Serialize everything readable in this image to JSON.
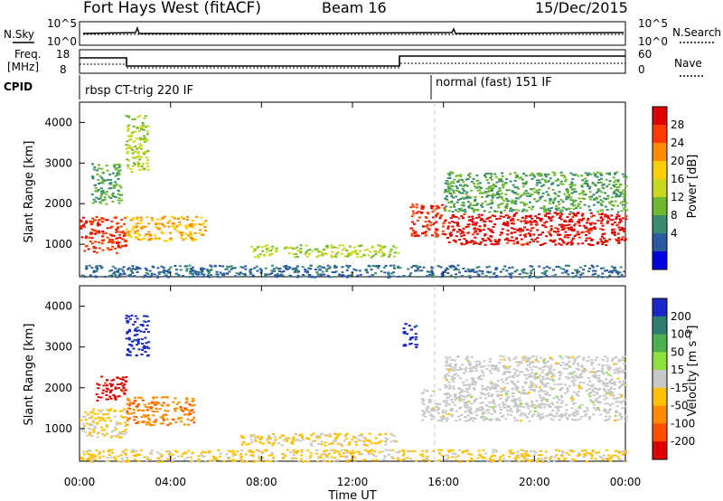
{
  "header": {
    "station": "Fort Hays West (fitACF)",
    "beam": "Beam 16",
    "date": "15/Dec/2015"
  },
  "noise_panel": {
    "left_label": "N.Sky",
    "right_label": "N.Search",
    "y_ticks_left": [
      "10^5",
      "10^0"
    ],
    "y_ticks_right": [
      "10^5",
      "10^0"
    ]
  },
  "freq_panel": {
    "left_label_line1": "Freq.",
    "left_label_line2": "[MHz]",
    "right_label": "Nave",
    "y_ticks_left": [
      "18",
      "8"
    ],
    "y_ticks_right": [
      "60",
      "0"
    ]
  },
  "cpid_panel": {
    "label": "CPID",
    "modes": [
      {
        "name": "rbsp CT-trig 220 IF",
        "start_hour": 0,
        "end_hour": 15.5
      },
      {
        "name": "normal (fast) 151 IF",
        "start_hour": 15.5,
        "end_hour": 24
      }
    ]
  },
  "power_colorbar": {
    "label": "Power [dB]",
    "ticks": [
      "28",
      "24",
      "20",
      "16",
      "12",
      "8",
      "4"
    ],
    "colors": [
      "#e00000",
      "#ff3c00",
      "#ff8c00",
      "#ffd000",
      "#c8d820",
      "#70b830",
      "#3a8c6e",
      "#2a5aa0",
      "#0000e0"
    ]
  },
  "velocity_colorbar": {
    "label": "Velocity [m s⁻¹]",
    "ticks": [
      "200",
      "100",
      "50",
      "15",
      "-15",
      "-50",
      "-100",
      "-200"
    ],
    "colors": [
      "#1a28c8",
      "#2e7d6e",
      "#4caf50",
      "#90e040",
      "#c8c8c8",
      "#ffc000",
      "#ff8c00",
      "#ff5000",
      "#e00000"
    ]
  },
  "x_axis": {
    "label": "Time UT",
    "ticks": [
      "00:00",
      "04:00",
      "08:00",
      "12:00",
      "16:00",
      "20:00",
      "00:00"
    ]
  },
  "y_axis": {
    "label": "Slant Range [km]",
    "ticks": [
      "1000",
      "2000",
      "3000",
      "4000"
    ]
  },
  "chart_data": [
    {
      "type": "heatmap",
      "title": "Power",
      "xlabel": "Time UT",
      "ylabel": "Slant Range [km]",
      "xlim": [
        0,
        24
      ],
      "ylim": [
        200,
        4500
      ],
      "colorbar_label": "Power [dB]",
      "value_range": [
        0,
        30
      ],
      "regions": [
        {
          "t_start": 0.0,
          "t_end": 2.0,
          "range_start": 800,
          "range_end": 1700,
          "value": 26
        },
        {
          "t_start": 0.5,
          "t_end": 1.8,
          "range_start": 2000,
          "range_end": 3000,
          "value": 10
        },
        {
          "t_start": 2.0,
          "t_end": 3.0,
          "range_start": 2800,
          "range_end": 4200,
          "value": 14
        },
        {
          "t_start": 2.0,
          "t_end": 5.5,
          "range_start": 1100,
          "range_end": 1700,
          "value": 20
        },
        {
          "t_start": 7.5,
          "t_end": 14.0,
          "range_start": 700,
          "range_end": 1000,
          "value": 14
        },
        {
          "t_start": 14.5,
          "t_end": 16.0,
          "range_start": 1200,
          "range_end": 2000,
          "value": 26
        },
        {
          "t_start": 16.0,
          "t_end": 24.0,
          "range_start": 1000,
          "range_end": 1800,
          "value": 28
        },
        {
          "t_start": 16.0,
          "t_end": 24.0,
          "range_start": 1800,
          "range_end": 2800,
          "value": 10
        },
        {
          "t_start": 0.0,
          "t_end": 24.0,
          "range_start": 200,
          "range_end": 500,
          "value": 6
        }
      ]
    },
    {
      "type": "heatmap",
      "title": "Velocity",
      "xlabel": "Time UT",
      "ylabel": "Slant Range [km]",
      "xlim": [
        0,
        24
      ],
      "ylim": [
        200,
        4500
      ],
      "colorbar_label": "Velocity [m s⁻¹]",
      "value_range": [
        -250,
        250
      ],
      "regions": [
        {
          "t_start": 0.0,
          "t_end": 2.0,
          "range_start": 800,
          "range_end": 1500,
          "value": -40
        },
        {
          "t_start": 0.7,
          "t_end": 2.0,
          "range_start": 1700,
          "range_end": 2300,
          "value": -220
        },
        {
          "t_start": 2.0,
          "t_end": 3.0,
          "range_start": 2800,
          "range_end": 3800,
          "value": 220
        },
        {
          "t_start": 2.0,
          "t_end": 5.0,
          "range_start": 1100,
          "range_end": 1800,
          "value": -120
        },
        {
          "t_start": 7.0,
          "t_end": 14.0,
          "range_start": 600,
          "range_end": 900,
          "value": -40
        },
        {
          "t_start": 14.2,
          "t_end": 14.8,
          "range_start": 3000,
          "range_end": 3600,
          "value": 220
        },
        {
          "t_start": 15.0,
          "t_end": 24.0,
          "range_start": 1200,
          "range_end": 2000,
          "value": 0
        },
        {
          "t_start": 16.0,
          "t_end": 24.0,
          "range_start": 2000,
          "range_end": 2800,
          "value": 0
        },
        {
          "t_start": 0.0,
          "t_end": 24.0,
          "range_start": 200,
          "range_end": 500,
          "value": -40
        }
      ]
    }
  ]
}
